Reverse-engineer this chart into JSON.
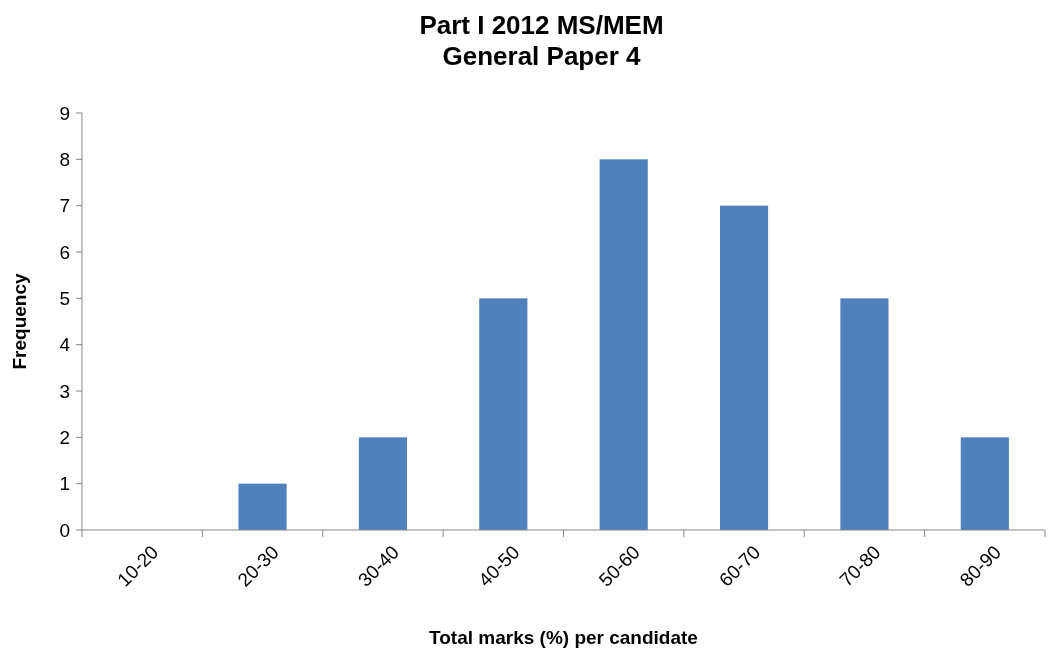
{
  "chart_data": {
    "type": "bar",
    "title": "Part I 2012 MS/MEM\nGeneral Paper 4",
    "xlabel": "Total marks (%) per candidate",
    "ylabel": "Frequency",
    "categories": [
      "10-20",
      "20-30",
      "30-40",
      "40-50",
      "50-60",
      "60-70",
      "70-80",
      "80-90"
    ],
    "values": [
      0,
      1,
      2,
      5,
      8,
      7,
      5,
      2
    ],
    "color": "#4f81bd",
    "ylim": [
      0,
      9
    ],
    "yticks": [
      0,
      1,
      2,
      3,
      4,
      5,
      6,
      7,
      8,
      9
    ],
    "grid": false
  }
}
